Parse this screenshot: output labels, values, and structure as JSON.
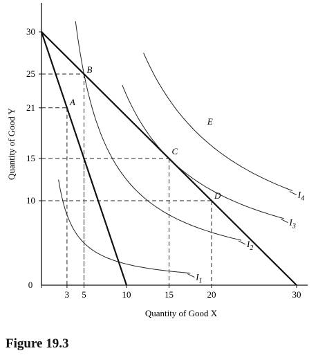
{
  "chart_data": {
    "type": "line",
    "title": "",
    "xlabel": "Quantity of Good X",
    "ylabel": "Quantity of Good Y",
    "xlim": [
      0,
      30
    ],
    "ylim": [
      0,
      32
    ],
    "x_ticks": [
      0,
      3,
      5,
      10,
      15,
      20,
      30
    ],
    "y_ticks": [
      0,
      10,
      15,
      21,
      25,
      30
    ],
    "budget_lines": [
      {
        "name": "",
        "points": [
          [
            0,
            30
          ],
          [
            10,
            0
          ]
        ]
      },
      {
        "name": "",
        "points": [
          [
            0,
            30
          ],
          [
            30,
            0
          ]
        ]
      }
    ],
    "indifference_curves": [
      {
        "label": "I",
        "sub": "1",
        "xy": 25,
        "x_range": [
          2,
          17.5
        ]
      },
      {
        "label": "I",
        "sub": "2",
        "xy": 125,
        "x_range": [
          4,
          23.5
        ]
      },
      {
        "label": "I",
        "sub": "3",
        "xy": 225,
        "x_range": [
          9.5,
          28.5
        ]
      },
      {
        "label": "I",
        "sub": "4",
        "xy": 330,
        "x_range": [
          12,
          29.5
        ]
      }
    ],
    "points": [
      {
        "label": "A",
        "x": 3,
        "y": 21
      },
      {
        "label": "B",
        "x": 5,
        "y": 25
      },
      {
        "label": "C",
        "x": 15,
        "y": 15
      },
      {
        "label": "D",
        "x": 20,
        "y": 10
      }
    ],
    "guides": [
      [
        5,
        15
      ]
    ],
    "annotations": [
      {
        "text": "E",
        "x": 19.5,
        "y": 19
      }
    ],
    "grid": false,
    "legend": "none"
  },
  "figure": {
    "caption": "Figure 19.3"
  }
}
